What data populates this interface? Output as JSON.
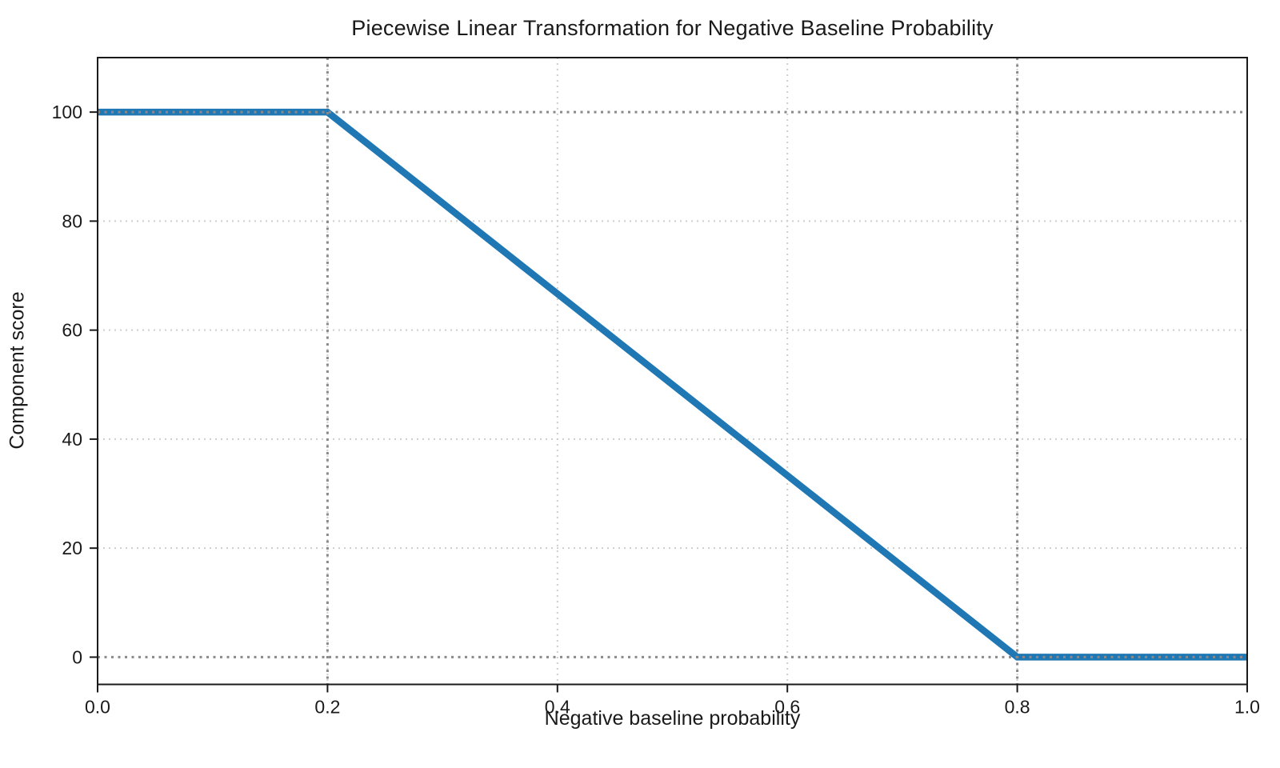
{
  "chart_data": {
    "type": "line",
    "title": "Piecewise Linear Transformation for Negative Baseline Probability",
    "xlabel": "Negative baseline probability",
    "ylabel": "Component score",
    "xlim": [
      0,
      1
    ],
    "ylim": [
      -5,
      110
    ],
    "x_ticks": [
      0,
      0.2,
      0.4,
      0.6,
      0.8,
      1.0
    ],
    "x_tick_labels": [
      "0.0",
      "0.2",
      "0.4",
      "0.6",
      "0.8",
      "1.0"
    ],
    "y_ticks": [
      0,
      20,
      40,
      60,
      80,
      100
    ],
    "y_tick_labels": [
      "0",
      "20",
      "40",
      "60",
      "80",
      "100"
    ],
    "series": [
      {
        "name": "component-score-line",
        "color": "#1f77b4",
        "points": [
          [
            0,
            100
          ],
          [
            0.2,
            100
          ],
          [
            0.8,
            0
          ],
          [
            1,
            0
          ]
        ]
      }
    ],
    "reference_lines": {
      "vertical_x": [
        0.2,
        0.8
      ],
      "horizontal_y": [
        0,
        100
      ],
      "color": "#8a8a8a",
      "style": "dotted"
    },
    "grid": {
      "on": true,
      "style": "dotted",
      "color": "#cdcdcd"
    },
    "colors": {
      "line": "#1f77b4",
      "spine": "#1a1a1a",
      "text": "#1a1a1a",
      "background": "#ffffff"
    }
  }
}
